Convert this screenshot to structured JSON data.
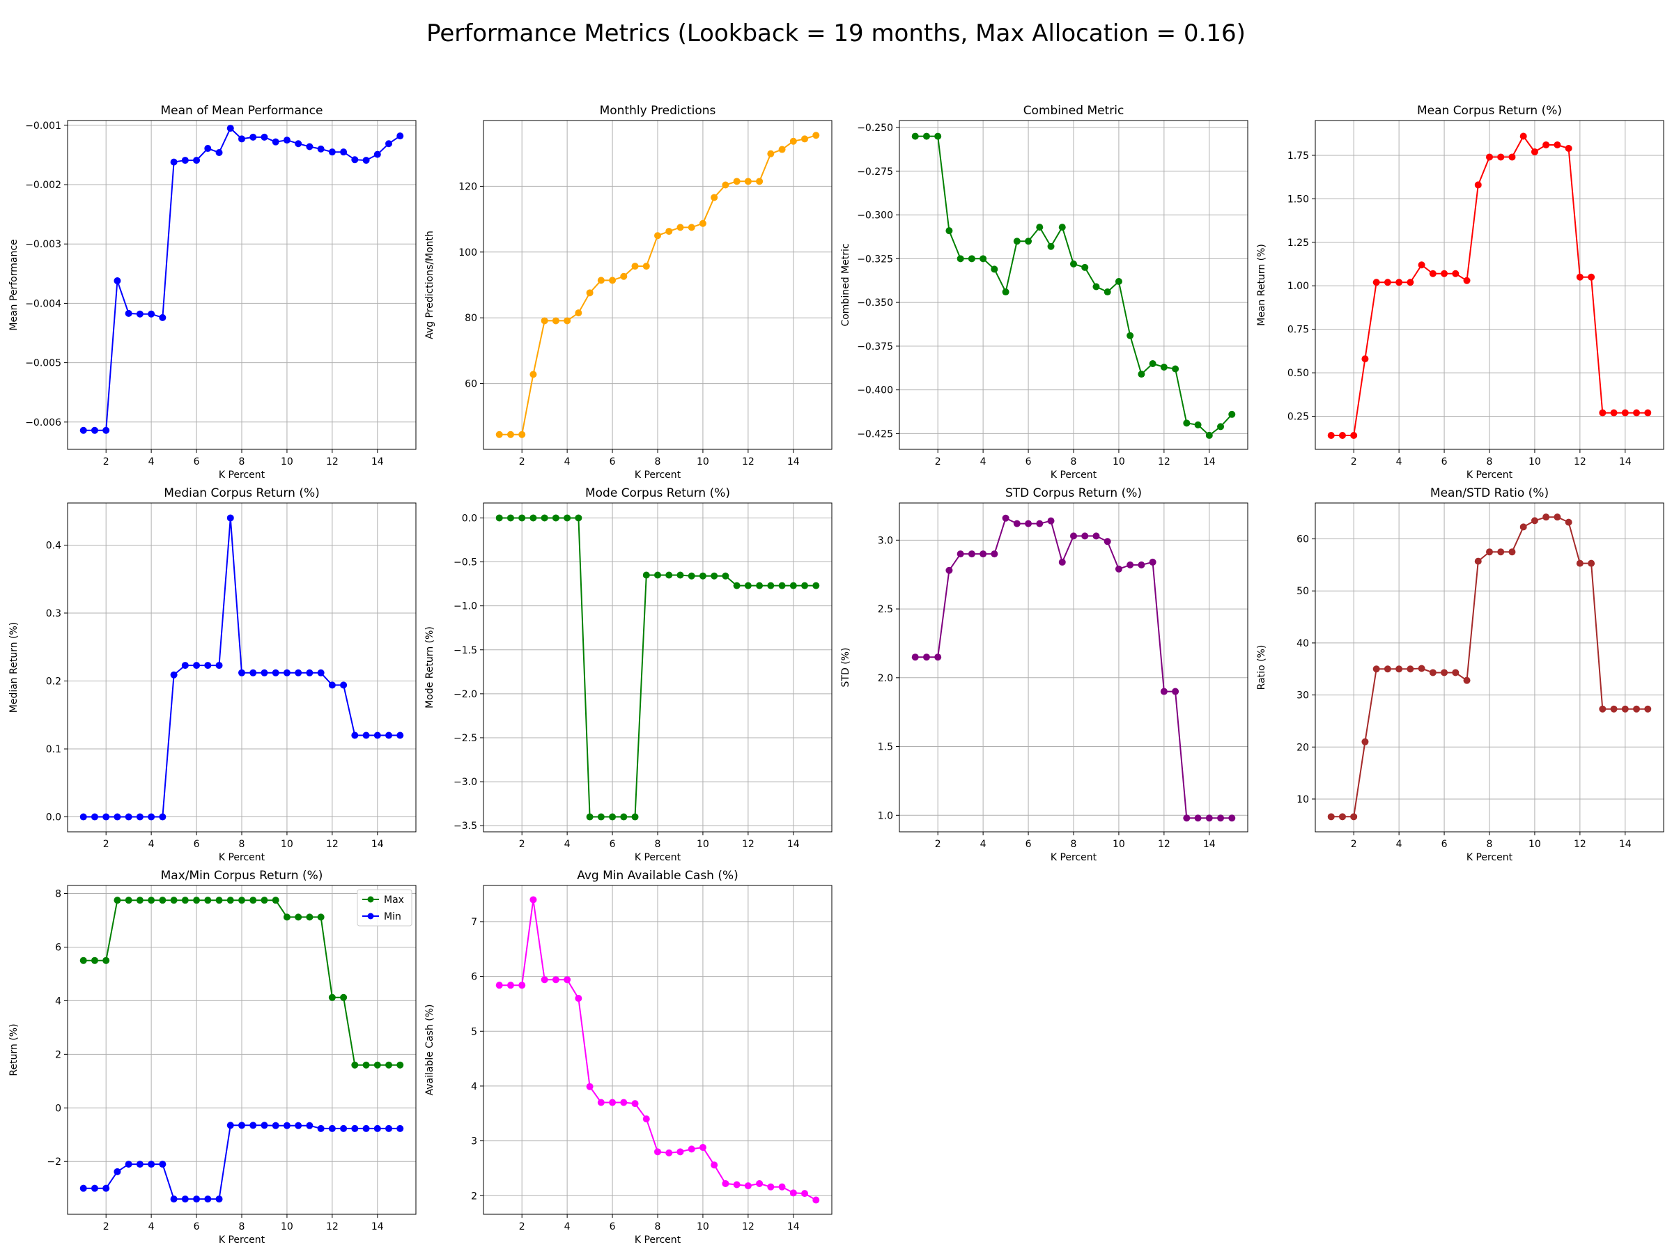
{
  "figure": {
    "title": "Performance Metrics (Lookback = 19 months, Max Allocation = 0.16)"
  },
  "chart_data": [
    {
      "type": "line",
      "title": "Mean of Mean Performance",
      "xlabel": "K Percent",
      "ylabel": "Mean Performance",
      "xlim": [
        0.3,
        15.7
      ],
      "ylim": [
        -0.00646,
        -0.00092
      ],
      "xticks": [
        2,
        4,
        6,
        8,
        10,
        12,
        14
      ],
      "yticks": [
        -0.006,
        -0.005,
        -0.004,
        -0.003,
        -0.002,
        -0.001
      ],
      "ytick_labels": [
        "−0.006",
        "−0.005",
        "−0.004",
        "−0.003",
        "−0.002",
        "−0.001"
      ],
      "grid": true,
      "x": [
        1,
        1.5,
        2,
        2.5,
        3,
        3.5,
        4,
        4.5,
        5,
        5.5,
        6,
        6.5,
        7,
        7.5,
        8,
        8.5,
        9,
        9.5,
        10,
        10.5,
        11,
        11.5,
        12,
        12.5,
        13,
        13.5,
        14,
        14.5,
        15
      ],
      "series": [
        {
          "color": "#0000ff",
          "values": [
            -0.00614,
            -0.00614,
            -0.00614,
            -0.00362,
            -0.00417,
            -0.00418,
            -0.00418,
            -0.00424,
            -0.00162,
            -0.00159,
            -0.00159,
            -0.00139,
            -0.00146,
            -0.00105,
            -0.00123,
            -0.0012,
            -0.0012,
            -0.00128,
            -0.00125,
            -0.00131,
            -0.00136,
            -0.0014,
            -0.00145,
            -0.00145,
            -0.00158,
            -0.00159,
            -0.00149,
            -0.00131,
            -0.00118
          ]
        }
      ]
    },
    {
      "type": "line",
      "title": "Monthly Predictions",
      "xlabel": "K Percent",
      "ylabel": "Avg Predictions/Month",
      "xlim": [
        0.3,
        15.7
      ],
      "ylim": [
        40,
        140
      ],
      "xticks": [
        2,
        4,
        6,
        8,
        10,
        12,
        14
      ],
      "yticks": [
        60,
        80,
        100,
        120
      ],
      "ytick_labels": [
        "60",
        "80",
        "100",
        "120"
      ],
      "grid": true,
      "x": [
        1,
        1.5,
        2,
        2.5,
        3,
        3.5,
        4,
        4.5,
        5,
        5.5,
        6,
        6.5,
        7,
        7.5,
        8,
        8.5,
        9,
        9.5,
        10,
        10.5,
        11,
        11.5,
        12,
        12.5,
        13,
        13.5,
        14,
        14.5,
        15
      ],
      "series": [
        {
          "color": "#ffa500",
          "values": [
            44.5,
            44.5,
            44.5,
            62.8,
            79.1,
            79.1,
            79.1,
            81.5,
            87.6,
            91.4,
            91.4,
            92.6,
            95.7,
            95.7,
            105,
            106.3,
            107.5,
            107.5,
            108.7,
            116.6,
            120.4,
            121.5,
            121.5,
            121.5,
            129.9,
            131.2,
            133.7,
            134.4,
            135.5
          ]
        }
      ]
    },
    {
      "type": "line",
      "title": "Combined Metric",
      "xlabel": "K Percent",
      "ylabel": "Combined Metric",
      "xlim": [
        0.3,
        15.7
      ],
      "ylim": [
        -0.434,
        -0.246
      ],
      "xticks": [
        2,
        4,
        6,
        8,
        10,
        12,
        14
      ],
      "yticks": [
        -0.425,
        -0.4,
        -0.375,
        -0.35,
        -0.325,
        -0.3,
        -0.275,
        -0.25
      ],
      "ytick_labels": [
        "−0.425",
        "−0.400",
        "−0.375",
        "−0.350",
        "−0.325",
        "−0.300",
        "−0.275",
        "−0.250"
      ],
      "grid": true,
      "x": [
        1,
        1.5,
        2,
        2.5,
        3,
        3.5,
        4,
        4.5,
        5,
        5.5,
        6,
        6.5,
        7,
        7.5,
        8,
        8.5,
        9,
        9.5,
        10,
        10.5,
        11,
        11.5,
        12,
        12.5,
        13,
        13.5,
        14,
        14.5,
        15
      ],
      "series": [
        {
          "color": "#008000",
          "values": [
            -0.255,
            -0.255,
            -0.255,
            -0.309,
            -0.325,
            -0.325,
            -0.325,
            -0.331,
            -0.344,
            -0.315,
            -0.315,
            -0.307,
            -0.318,
            -0.307,
            -0.328,
            -0.33,
            -0.341,
            -0.344,
            -0.338,
            -0.369,
            -0.391,
            -0.385,
            -0.387,
            -0.388,
            -0.419,
            -0.42,
            -0.426,
            -0.421,
            -0.414
          ]
        }
      ]
    },
    {
      "type": "line",
      "title": "Mean Corpus Return (%)",
      "xlabel": "K Percent",
      "ylabel": "Mean Return (%)",
      "xlim": [
        0.3,
        15.7
      ],
      "ylim": [
        0.06,
        1.95
      ],
      "xticks": [
        2,
        4,
        6,
        8,
        10,
        12,
        14
      ],
      "yticks": [
        0.25,
        0.5,
        0.75,
        1.0,
        1.25,
        1.5,
        1.75
      ],
      "ytick_labels": [
        "0.25",
        "0.50",
        "0.75",
        "1.00",
        "1.25",
        "1.50",
        "1.75"
      ],
      "grid": true,
      "x": [
        1,
        1.5,
        2,
        2.5,
        3,
        3.5,
        4,
        4.5,
        5,
        5.5,
        6,
        6.5,
        7,
        7.5,
        8,
        8.5,
        9,
        9.5,
        10,
        10.5,
        11,
        11.5,
        12,
        12.5,
        13,
        13.5,
        14,
        14.5,
        15
      ],
      "series": [
        {
          "color": "#ff0000",
          "values": [
            0.14,
            0.14,
            0.14,
            0.58,
            1.02,
            1.02,
            1.02,
            1.02,
            1.12,
            1.07,
            1.07,
            1.07,
            1.03,
            1.58,
            1.74,
            1.74,
            1.74,
            1.86,
            1.77,
            1.81,
            1.81,
            1.79,
            1.05,
            1.05,
            0.27,
            0.27,
            0.27,
            0.27,
            0.27
          ]
        }
      ]
    },
    {
      "type": "line",
      "title": "Median Corpus Return (%)",
      "xlabel": "K Percent",
      "ylabel": "Median Return (%)",
      "xlim": [
        0.3,
        15.7
      ],
      "ylim": [
        -0.022,
        0.462
      ],
      "xticks": [
        2,
        4,
        6,
        8,
        10,
        12,
        14
      ],
      "yticks": [
        0.0,
        0.1,
        0.2,
        0.3,
        0.4
      ],
      "ytick_labels": [
        "0.0",
        "0.1",
        "0.2",
        "0.3",
        "0.4"
      ],
      "grid": true,
      "x": [
        1,
        1.5,
        2,
        2.5,
        3,
        3.5,
        4,
        4.5,
        5,
        5.5,
        6,
        6.5,
        7,
        7.5,
        8,
        8.5,
        9,
        9.5,
        10,
        10.5,
        11,
        11.5,
        12,
        12.5,
        13,
        13.5,
        14,
        14.5,
        15
      ],
      "series": [
        {
          "color": "#0000ff",
          "values": [
            0,
            0,
            0,
            0,
            0,
            0,
            0,
            0,
            0.209,
            0.223,
            0.223,
            0.223,
            0.223,
            0.44,
            0.212,
            0.212,
            0.212,
            0.212,
            0.212,
            0.212,
            0.212,
            0.212,
            0.194,
            0.194,
            0.12,
            0.12,
            0.12,
            0.12,
            0.12
          ]
        }
      ]
    },
    {
      "type": "line",
      "title": "Mode Corpus Return (%)",
      "xlabel": "K Percent",
      "ylabel": "Mode Return (%)",
      "xlim": [
        0.3,
        15.7
      ],
      "ylim": [
        -3.57,
        0.17
      ],
      "xticks": [
        2,
        4,
        6,
        8,
        10,
        12,
        14
      ],
      "yticks": [
        -3.5,
        -3.0,
        -2.5,
        -2.0,
        -1.5,
        -1.0,
        -0.5,
        0.0
      ],
      "ytick_labels": [
        "−3.5",
        "−3.0",
        "−2.5",
        "−2.0",
        "−1.5",
        "−1.0",
        "−0.5",
        "0.0"
      ],
      "grid": true,
      "x": [
        1,
        1.5,
        2,
        2.5,
        3,
        3.5,
        4,
        4.5,
        5,
        5.5,
        6,
        6.5,
        7,
        7.5,
        8,
        8.5,
        9,
        9.5,
        10,
        10.5,
        11,
        11.5,
        12,
        12.5,
        13,
        13.5,
        14,
        14.5,
        15
      ],
      "series": [
        {
          "color": "#008000",
          "values": [
            0,
            0,
            0,
            0,
            0,
            0,
            0,
            0,
            -3.4,
            -3.4,
            -3.4,
            -3.4,
            -3.4,
            -0.65,
            -0.65,
            -0.65,
            -0.65,
            -0.66,
            -0.66,
            -0.66,
            -0.66,
            -0.77,
            -0.77,
            -0.77,
            -0.77,
            -0.77,
            -0.77,
            -0.77,
            -0.77
          ]
        }
      ]
    },
    {
      "type": "line",
      "title": "STD Corpus Return (%)",
      "xlabel": "K Percent",
      "ylabel": "STD (%)",
      "xlim": [
        0.3,
        15.7
      ],
      "ylim": [
        0.88,
        3.27
      ],
      "xticks": [
        2,
        4,
        6,
        8,
        10,
        12,
        14
      ],
      "yticks": [
        1.0,
        1.5,
        2.0,
        2.5,
        3.0
      ],
      "ytick_labels": [
        "1.0",
        "1.5",
        "2.0",
        "2.5",
        "3.0"
      ],
      "grid": true,
      "x": [
        1,
        1.5,
        2,
        2.5,
        3,
        3.5,
        4,
        4.5,
        5,
        5.5,
        6,
        6.5,
        7,
        7.5,
        8,
        8.5,
        9,
        9.5,
        10,
        10.5,
        11,
        11.5,
        12,
        12.5,
        13,
        13.5,
        14,
        14.5,
        15
      ],
      "series": [
        {
          "color": "#800080",
          "values": [
            2.15,
            2.15,
            2.15,
            2.78,
            2.9,
            2.9,
            2.9,
            2.9,
            3.16,
            3.12,
            3.12,
            3.12,
            3.14,
            2.84,
            3.03,
            3.03,
            3.03,
            2.99,
            2.79,
            2.82,
            2.82,
            2.84,
            1.9,
            1.9,
            0.98,
            0.98,
            0.98,
            0.98,
            0.98
          ]
        }
      ]
    },
    {
      "type": "line",
      "title": "Mean/STD Ratio (%)",
      "xlabel": "K Percent",
      "ylabel": "Ratio (%)",
      "xlim": [
        0.3,
        15.7
      ],
      "ylim": [
        3.7,
        66.9
      ],
      "xticks": [
        2,
        4,
        6,
        8,
        10,
        12,
        14
      ],
      "yticks": [
        10,
        20,
        30,
        40,
        50,
        60
      ],
      "ytick_labels": [
        "10",
        "20",
        "30",
        "40",
        "50",
        "60"
      ],
      "grid": true,
      "x": [
        1,
        1.5,
        2,
        2.5,
        3,
        3.5,
        4,
        4.5,
        5,
        5.5,
        6,
        6.5,
        7,
        7.5,
        8,
        8.5,
        9,
        9.5,
        10,
        10.5,
        11,
        11.5,
        12,
        12.5,
        13,
        13.5,
        14,
        14.5,
        15
      ],
      "series": [
        {
          "color": "#a52a2a",
          "values": [
            6.6,
            6.6,
            6.6,
            21,
            35,
            35,
            35,
            35,
            35.1,
            34.3,
            34.3,
            34.3,
            32.8,
            55.7,
            57.5,
            57.5,
            57.5,
            62.3,
            63.5,
            64.2,
            64.2,
            63.2,
            55.3,
            55.3,
            27.3,
            27.3,
            27.3,
            27.3,
            27.3
          ]
        }
      ]
    },
    {
      "type": "line",
      "title": "Max/Min Corpus Return (%)",
      "xlabel": "K Percent",
      "ylabel": "Return (%)",
      "xlim": [
        0.3,
        15.7
      ],
      "ylim": [
        -3.97,
        8.3
      ],
      "xticks": [
        2,
        4,
        6,
        8,
        10,
        12,
        14
      ],
      "yticks": [
        -2,
        0,
        2,
        4,
        6,
        8
      ],
      "ytick_labels": [
        "−2",
        "0",
        "2",
        "4",
        "6",
        "8"
      ],
      "grid": true,
      "legend": "top-right",
      "x": [
        1,
        1.5,
        2,
        2.5,
        3,
        3.5,
        4,
        4.5,
        5,
        5.5,
        6,
        6.5,
        7,
        7.5,
        8,
        8.5,
        9,
        9.5,
        10,
        10.5,
        11,
        11.5,
        12,
        12.5,
        13,
        13.5,
        14,
        14.5,
        15
      ],
      "series": [
        {
          "name": "Max",
          "color": "#008000",
          "values": [
            5.5,
            5.5,
            5.5,
            7.75,
            7.75,
            7.75,
            7.75,
            7.75,
            7.75,
            7.75,
            7.75,
            7.75,
            7.75,
            7.75,
            7.75,
            7.75,
            7.75,
            7.75,
            7.12,
            7.12,
            7.12,
            7.12,
            4.12,
            4.12,
            1.6,
            1.6,
            1.6,
            1.6,
            1.6
          ]
        },
        {
          "name": "Min",
          "color": "#0000ff",
          "values": [
            -3,
            -3,
            -3,
            -2.38,
            -2.1,
            -2.1,
            -2.1,
            -2.1,
            -3.4,
            -3.4,
            -3.4,
            -3.4,
            -3.4,
            -0.65,
            -0.65,
            -0.65,
            -0.65,
            -0.66,
            -0.66,
            -0.66,
            -0.66,
            -0.77,
            -0.77,
            -0.77,
            -0.77,
            -0.77,
            -0.77,
            -0.77,
            -0.77
          ]
        }
      ]
    },
    {
      "type": "line",
      "title": "Avg Min Available Cash (%)",
      "xlabel": "K Percent",
      "ylabel": "Available Cash (%)",
      "xlim": [
        0.3,
        15.7
      ],
      "ylim": [
        1.66,
        7.66
      ],
      "xticks": [
        2,
        4,
        6,
        8,
        10,
        12,
        14
      ],
      "yticks": [
        2,
        3,
        4,
        5,
        6,
        7
      ],
      "ytick_labels": [
        "2",
        "3",
        "4",
        "5",
        "6",
        "7"
      ],
      "grid": true,
      "x": [
        1,
        1.5,
        2,
        2.5,
        3,
        3.5,
        4,
        4.5,
        5,
        5.5,
        6,
        6.5,
        7,
        7.5,
        8,
        8.5,
        9,
        9.5,
        10,
        10.5,
        11,
        11.5,
        12,
        12.5,
        13,
        13.5,
        14,
        14.5,
        15
      ],
      "series": [
        {
          "color": "#ff00ff",
          "values": [
            5.84,
            5.84,
            5.84,
            7.4,
            5.94,
            5.94,
            5.94,
            5.6,
            3.99,
            3.7,
            3.7,
            3.7,
            3.68,
            3.4,
            2.8,
            2.78,
            2.8,
            2.85,
            2.88,
            2.56,
            2.22,
            2.2,
            2.18,
            2.22,
            2.16,
            2.16,
            2.05,
            2.04,
            1.92
          ]
        }
      ]
    }
  ]
}
